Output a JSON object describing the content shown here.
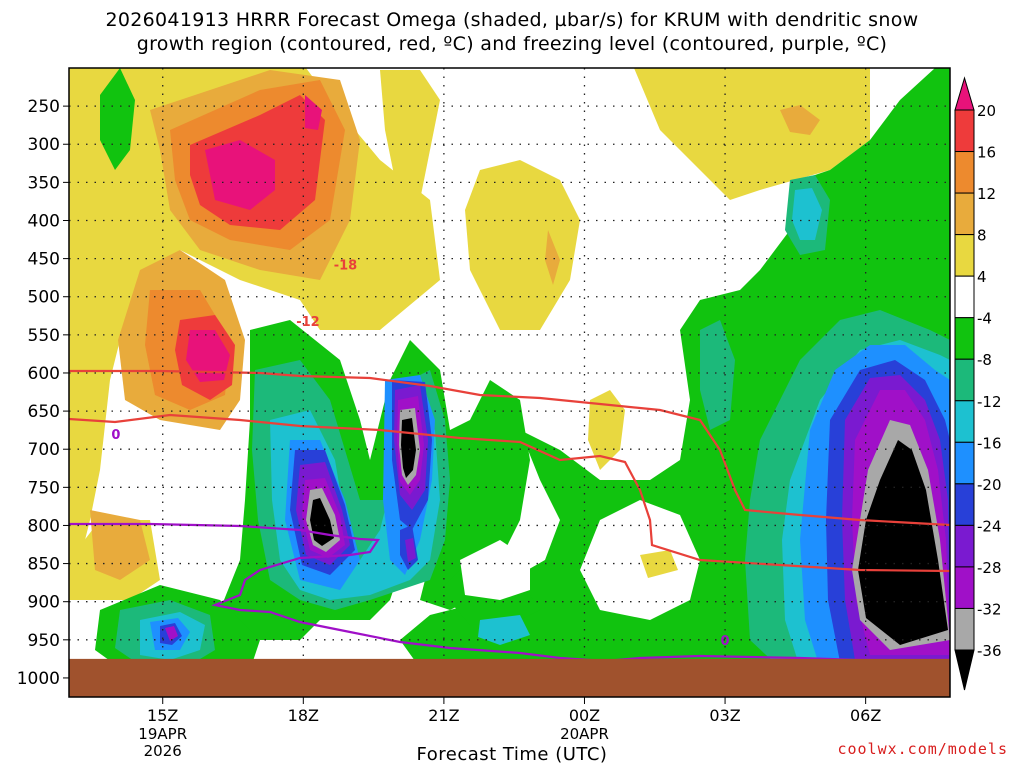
{
  "title_line1": "2026041913 HRRR Forecast Omega (shaded, µbar/s) for KRUM with dendritic snow",
  "title_line2": "growth region (contoured, red, ºC) and freezing level (contoured, purple, ºC)",
  "credit": "coolwx.com/models",
  "chart_data": {
    "type": "contour",
    "xlabel": "Forecast Time (UTC)",
    "x_ticks": [
      {
        "label": "15Z",
        "sub": [
          "19APR",
          "2026"
        ],
        "hour": 15
      },
      {
        "label": "18Z",
        "sub": [],
        "hour": 18
      },
      {
        "label": "21Z",
        "sub": [],
        "hour": 21
      },
      {
        "label": "00Z",
        "sub": [
          "20APR"
        ],
        "hour": 24
      },
      {
        "label": "03Z",
        "sub": [],
        "hour": 27
      },
      {
        "label": "06Z",
        "sub": [],
        "hour": 30
      }
    ],
    "xlim_hours": [
      13,
      31.8
    ],
    "y_ticks": [
      "250",
      "300",
      "350",
      "400",
      "450",
      "500",
      "550",
      "600",
      "650",
      "700",
      "750",
      "800",
      "850",
      "900",
      "950",
      "1000"
    ],
    "y_values": [
      250,
      300,
      350,
      400,
      450,
      500,
      550,
      600,
      650,
      700,
      750,
      800,
      850,
      900,
      950,
      1000
    ],
    "ylim_hPa": [
      200,
      1025
    ],
    "colorbar": {
      "labels": [
        "20",
        "16",
        "12",
        "8",
        "4",
        "-4",
        "-8",
        "-12",
        "-16",
        "-20",
        "-24",
        "-28",
        "-32",
        "-36"
      ],
      "colors": [
        "#e8127a",
        "#ee3b3b",
        "#ed8a2e",
        "#e8ab3c",
        "#e8d840",
        "#ffffff",
        "#11c30f",
        "#1cb97a",
        "#1dc1d0",
        "#1e90ff",
        "#2840d8",
        "#7a1ad0",
        "#a010c8",
        "#a8a8a8",
        "#000000"
      ]
    },
    "contour_labels": [
      {
        "text": "-18",
        "color": "#e8413a",
        "hour": 18.9,
        "hPa": 458
      },
      {
        "text": "-12",
        "color": "#e8413a",
        "hour": 18.1,
        "hPa": 532
      },
      {
        "text": "0",
        "color": "#a010c8",
        "hour": 14.0,
        "hPa": 680
      },
      {
        "text": "0",
        "color": "#a010c8",
        "hour": 27.0,
        "hPa": 950
      }
    ],
    "ground": {
      "color": "#a0522d",
      "hPa_top": 975
    }
  }
}
